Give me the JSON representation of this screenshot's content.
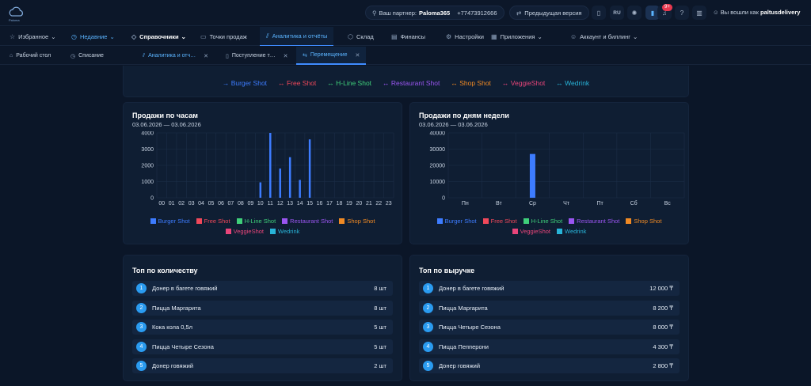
{
  "topbar": {
    "logo_text": "Paloma",
    "partner_label": "Ваш партнер:",
    "partner_name": "Paloma365",
    "phone": "+77473912666",
    "prev_version": "Предыдущая версия",
    "lang": "RU",
    "notif_count": "9+",
    "user_label": "Вы вошли как",
    "user_name": "paltusdelivery"
  },
  "nav": [
    {
      "label": "Избранное",
      "icon": "star-icon",
      "glyph": "☆",
      "chev": true
    },
    {
      "label": "Недавние",
      "icon": "clock-icon",
      "glyph": "◷",
      "chev": true,
      "highlight": true
    },
    {
      "label": "Справочники",
      "icon": "tag-icon",
      "glyph": "◇",
      "chev": true,
      "bold": true
    },
    {
      "label": "Точки продаж",
      "icon": "monitor-icon",
      "glyph": "▭"
    },
    {
      "label": "Аналитика и отчёты",
      "icon": "chart-icon",
      "glyph": "⫽",
      "active": true
    },
    {
      "label": "Склад",
      "icon": "box-icon",
      "glyph": "⬡"
    },
    {
      "label": "Финансы",
      "icon": "money-icon",
      "glyph": "▤"
    },
    {
      "label": "Настройки",
      "icon": "gear-icon",
      "glyph": "⚙"
    },
    {
      "label": "Приложения",
      "icon": "apps-icon",
      "glyph": "▦",
      "chev": true
    },
    {
      "label": "Аккаунт и биллинг",
      "icon": "user-icon",
      "glyph": "☺",
      "chev": true
    }
  ],
  "tabs": [
    {
      "label": "Рабочий стол",
      "icon": "home-icon",
      "glyph": "⌂"
    },
    {
      "label": "Списание",
      "icon": "clock-icon",
      "glyph": "◷"
    },
    {
      "label": "Аналитика и отч…",
      "icon": "chart-icon",
      "glyph": "⫽",
      "close": true,
      "highlight": true
    },
    {
      "label": "Поступление т…",
      "icon": "doc-icon",
      "glyph": "▯",
      "close": true
    },
    {
      "label": "Перемещение",
      "icon": "transfer-icon",
      "glyph": "⇆",
      "close": true,
      "active": true
    }
  ],
  "venues": [
    {
      "name": "Burger Shot",
      "arrow": "→",
      "color": "#3d7cff"
    },
    {
      "name": "Free Shot",
      "arrow": "↔",
      "color": "#f0485a"
    },
    {
      "name": "H-Line Shot",
      "arrow": "↔",
      "color": "#3fcf7a"
    },
    {
      "name": "Restaurant Shot",
      "arrow": "↔",
      "color": "#9a55f0"
    },
    {
      "name": "Shop Shot",
      "arrow": "↔",
      "color": "#f08a24"
    },
    {
      "name": "VeggieShot",
      "arrow": "↔",
      "color": "#e8457a"
    },
    {
      "name": "Wedrink",
      "arrow": "↔",
      "color": "#28b4d8"
    }
  ],
  "hourly": {
    "title": "Продажи по часам",
    "period": "03.06.2026 — 03.06.2026"
  },
  "weekly": {
    "title": "Продажи по дням недели",
    "period": "03.06.2026 — 03.06.2026"
  },
  "chart_data": [
    {
      "type": "bar",
      "title": "Продажи по часам",
      "categories": [
        "00",
        "01",
        "02",
        "03",
        "04",
        "05",
        "06",
        "07",
        "08",
        "09",
        "10",
        "11",
        "12",
        "13",
        "14",
        "15",
        "16",
        "17",
        "18",
        "19",
        "20",
        "21",
        "22",
        "23"
      ],
      "series": [
        {
          "name": "Burger Shot",
          "values": [
            0,
            0,
            0,
            0,
            0,
            0,
            0,
            0,
            0,
            0,
            950,
            4000,
            1800,
            2500,
            1100,
            3600,
            0,
            0,
            0,
            0,
            0,
            0,
            0,
            0
          ]
        }
      ],
      "yticks": [
        "0",
        "1000",
        "2000",
        "3000",
        "4000"
      ],
      "ylim": [
        0,
        4000
      ],
      "grid": true,
      "legend": "bottom"
    },
    {
      "type": "bar",
      "title": "Продажи по дням недели",
      "categories": [
        "Пн",
        "Вт",
        "Ср",
        "Чт",
        "Пт",
        "Сб",
        "Вс"
      ],
      "series": [
        {
          "name": "Burger Shot",
          "values": [
            0,
            0,
            27000,
            0,
            0,
            0,
            0
          ]
        }
      ],
      "yticks": [
        "0",
        "10000",
        "20000",
        "30000",
        "40000"
      ],
      "ylim": [
        0,
        40000
      ],
      "grid": true,
      "legend": "bottom"
    }
  ],
  "top_qty": {
    "title": "Топ по количеству",
    "items": [
      {
        "rank": "1",
        "name": "Донер в багете говяжий",
        "value": "8 шт"
      },
      {
        "rank": "2",
        "name": "Пицца Маргарита",
        "value": "8 шт"
      },
      {
        "rank": "3",
        "name": "Кока кола 0,5л",
        "value": "5 шт"
      },
      {
        "rank": "4",
        "name": "Пицца Четыре Сезона",
        "value": "5 шт"
      },
      {
        "rank": "5",
        "name": "Донер говяжий",
        "value": "2 шт"
      }
    ]
  },
  "top_revenue": {
    "title": "Топ по выручке",
    "items": [
      {
        "rank": "1",
        "name": "Донер в багете говяжий",
        "value": "12 000 ₸"
      },
      {
        "rank": "2",
        "name": "Пицца Маргарита",
        "value": "8 200 ₸"
      },
      {
        "rank": "3",
        "name": "Пицца Четыре Сезона",
        "value": "8 000 ₸"
      },
      {
        "rank": "4",
        "name": "Пицца Пепперони",
        "value": "4 300 ₸"
      },
      {
        "rank": "5",
        "name": "Донер говяжий",
        "value": "2 800 ₸"
      }
    ]
  }
}
